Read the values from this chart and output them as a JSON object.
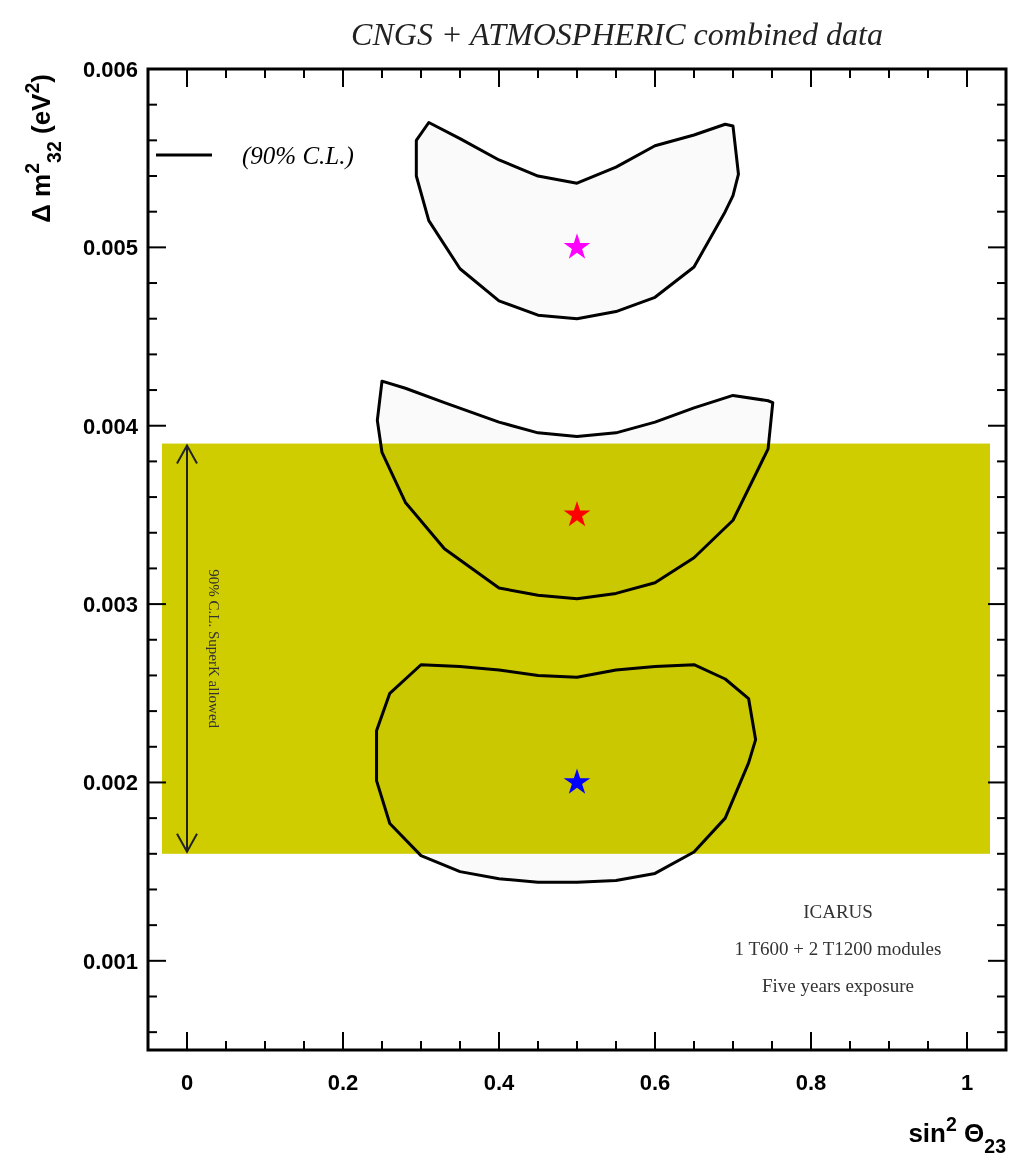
{
  "chart_data": {
    "type": "line",
    "title": "CNGS + ATMOSPHERIC combined data",
    "xlabel": "sin$^{2}$ Θ$_{23}$",
    "ylabel": "Δ m$^{2}$$_{32}$ (eV$^{2}$)",
    "xlim": [
      -0.05,
      1.05
    ],
    "ylim": [
      0.0005,
      0.006
    ],
    "xticks": [
      0,
      {
        "value": 0.05,
        "label": null
      },
      {
        "value": 0.1,
        "label": null
      },
      {
        "value": 0.15,
        "label": null
      },
      0.2,
      {
        "value": 0.25,
        "label": null
      },
      {
        "value": 0.3,
        "label": null
      },
      {
        "value": 0.35,
        "label": null
      },
      0.4,
      {
        "value": 0.45,
        "label": null
      },
      {
        "value": 0.5,
        "label": null
      },
      {
        "value": 0.55,
        "label": null
      },
      0.6,
      {
        "value": 0.65,
        "label": null
      },
      {
        "value": 0.7,
        "label": null
      },
      {
        "value": 0.75,
        "label": null
      },
      0.8,
      {
        "value": 0.85,
        "label": null
      },
      {
        "value": 0.9,
        "label": null
      },
      {
        "value": 0.95,
        "label": null
      },
      1
    ],
    "yticks": [
      {
        "value": 0.0006,
        "label": null
      },
      {
        "value": 0.0008,
        "label": null
      },
      0.001,
      {
        "value": 0.0012,
        "label": null
      },
      {
        "value": 0.0014,
        "label": null
      },
      {
        "value": 0.0016,
        "label": null
      },
      {
        "value": 0.0018,
        "label": null
      },
      0.002,
      {
        "value": 0.0022,
        "label": null
      },
      {
        "value": 0.0024,
        "label": null
      },
      {
        "value": 0.0026,
        "label": null
      },
      {
        "value": 0.0028,
        "label": null
      },
      0.003,
      {
        "value": 0.0032,
        "label": null
      },
      {
        "value": 0.0034,
        "label": null
      },
      {
        "value": 0.0036,
        "label": null
      },
      {
        "value": 0.0038,
        "label": null
      },
      0.004,
      {
        "value": 0.0042,
        "label": null
      },
      {
        "value": 0.0044,
        "label": null
      },
      {
        "value": 0.0046,
        "label": null
      },
      {
        "value": 0.0048,
        "label": null
      },
      0.005,
      {
        "value": 0.0052,
        "label": null
      },
      {
        "value": 0.0054,
        "label": null
      },
      {
        "value": 0.0056,
        "label": null
      },
      {
        "value": 0.0058,
        "label": null
      },
      0.006
    ],
    "bands": [
      {
        "axis": "y",
        "from": 0.0016,
        "to": 0.0039,
        "label": "90% C.L. SuperK allowed",
        "color": "#cfcc00"
      }
    ],
    "series": [
      {
        "name": "(90% C.L.)",
        "color": "#000000",
        "x": [
          0.294,
          0.31,
          0.35,
          0.4,
          0.45,
          0.5,
          0.55,
          0.6,
          0.65,
          0.69,
          0.7,
          0.707
        ],
        "values": [
          null,
          null,
          null,
          null,
          null,
          null,
          null,
          null,
          null,
          null,
          null,
          null
        ],
        "upper": [
          0.0056,
          0.0057,
          0.00561,
          0.00549,
          0.0054,
          0.00536,
          0.00545,
          0.00557,
          0.00563,
          0.00569,
          0.00568,
          0.00541
        ],
        "lower": [
          0.0054,
          0.00515,
          0.00488,
          0.0047,
          0.00462,
          0.0046,
          0.00464,
          0.00472,
          0.00489,
          0.0052,
          0.00529,
          0.00541
        ]
      },
      {
        "color": "#010101",
        "x": [
          0.244,
          0.25,
          0.28,
          0.33,
          0.4,
          0.45,
          0.5,
          0.55,
          0.6,
          0.65,
          0.7,
          0.745,
          0.751
        ],
        "values": [
          null,
          null,
          null,
          null,
          null,
          null,
          null,
          null,
          null,
          null,
          null,
          null,
          null
        ],
        "upper": [
          0.00403,
          0.00425,
          0.00421,
          0.00413,
          0.00402,
          0.00396,
          0.00394,
          0.00396,
          0.00402,
          0.0041,
          0.00417,
          0.00414,
          0.00413
        ],
        "lower": [
          0.00403,
          0.00385,
          0.00357,
          0.00331,
          0.00309,
          0.00305,
          0.00303,
          0.00306,
          0.00312,
          0.00326,
          0.00347,
          0.00387,
          0.00413
        ]
      },
      {
        "color": "#020202",
        "x": [
          0.243,
          0.26,
          0.3,
          0.35,
          0.4,
          0.45,
          0.5,
          0.55,
          0.6,
          0.65,
          0.69,
          0.72,
          0.729
        ],
        "values": [
          null,
          null,
          null,
          null,
          null,
          null,
          null,
          null,
          null,
          null,
          null,
          null,
          null
        ],
        "upper": [
          0.00229,
          0.0025,
          0.00266,
          0.00265,
          0.00263,
          0.0026,
          0.00259,
          0.00263,
          0.00265,
          0.00266,
          0.00258,
          0.00247,
          0.00224
        ],
        "lower": [
          0.00201,
          0.00177,
          0.00159,
          0.0015,
          0.00146,
          0.00144,
          0.00144,
          0.00145,
          0.00149,
          0.00161,
          0.0018,
          0.00211,
          0.00224
        ]
      },
      {
        "type": "scatter",
        "marker": "star",
        "color": "#ff00ff",
        "x": [
          0.5
        ],
        "values": [
          0.005
        ]
      },
      {
        "type": "scatter",
        "marker": "star",
        "color": "#ff0000",
        "x": [
          0.5
        ],
        "values": [
          0.0035
        ]
      },
      {
        "type": "scatter",
        "marker": "star",
        "color": "#0000ff",
        "x": [
          0.5
        ],
        "values": [
          0.002
        ]
      }
    ],
    "legend": "top left",
    "annotations": [
      "ICARUS",
      "1 T600 + 2 T1200 modules",
      "Five years exposure"
    ]
  }
}
